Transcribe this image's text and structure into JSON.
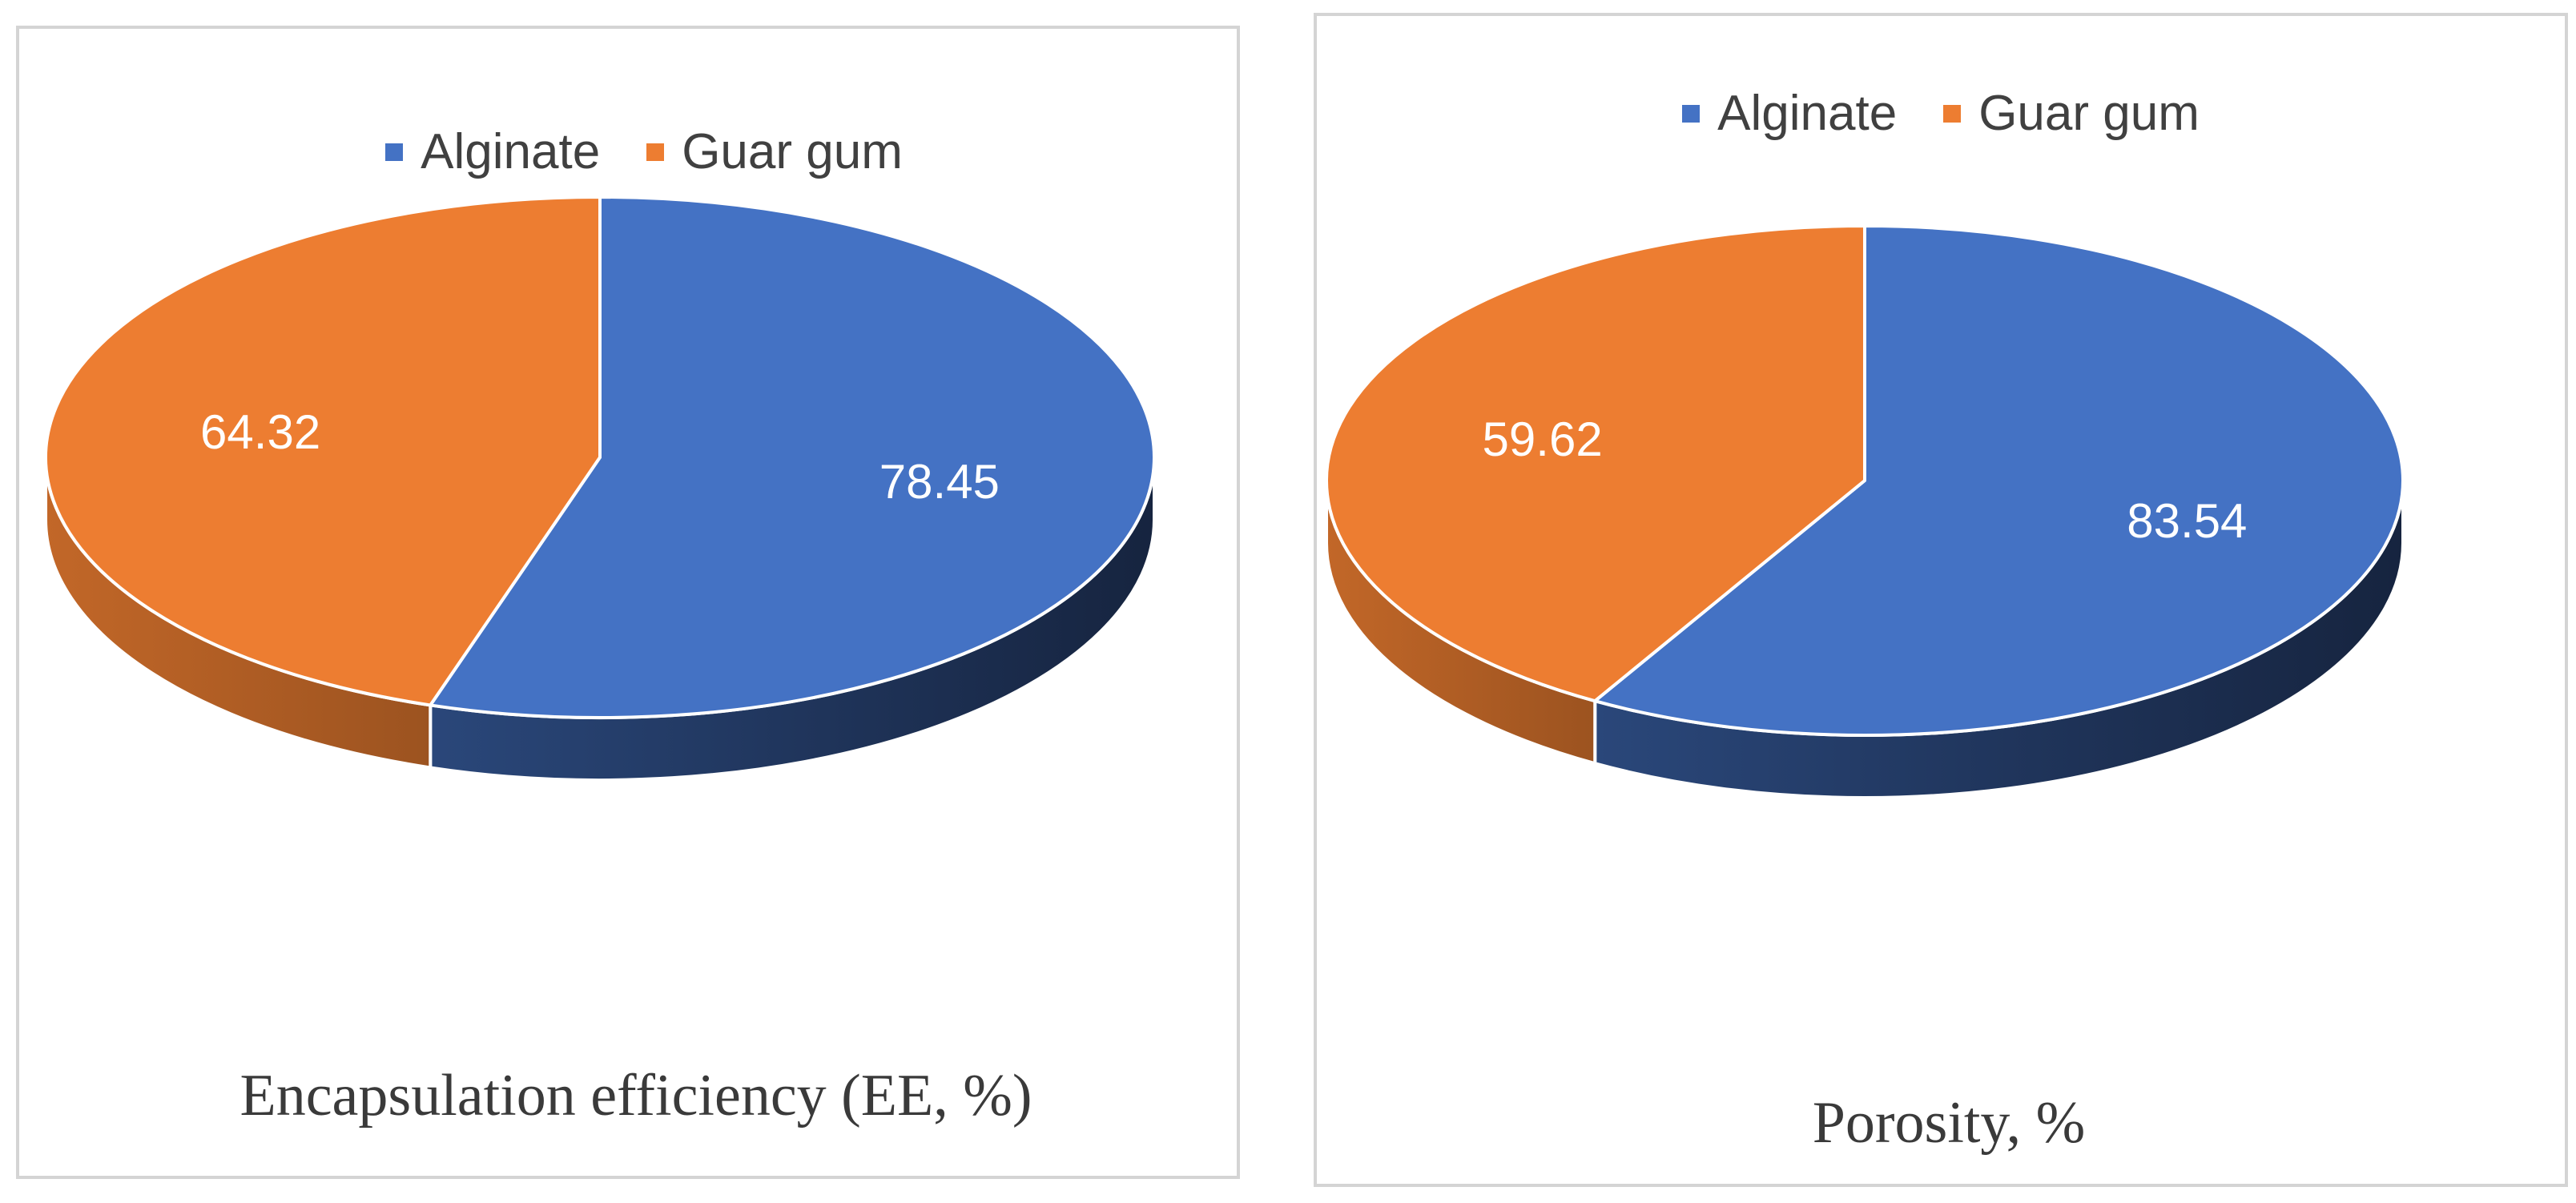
{
  "chart_data": [
    {
      "type": "pie",
      "style": "3d",
      "title": "",
      "caption": "Encapsulation efficiency (EE, %)",
      "legend_position": "top",
      "slices": [
        {
          "label": "Alginate",
          "value": 78.45,
          "color": "#4472c4"
        },
        {
          "label": "Guar gum",
          "value": 64.32,
          "color": "#ed7d31"
        }
      ]
    },
    {
      "type": "pie",
      "style": "3d",
      "title": "",
      "caption": "Porosity, %",
      "legend_position": "top",
      "slices": [
        {
          "label": "Alginate",
          "value": 83.54,
          "color": "#4472c4"
        },
        {
          "label": "Guar gum",
          "value": 59.62,
          "color": "#ed7d31"
        }
      ]
    }
  ]
}
